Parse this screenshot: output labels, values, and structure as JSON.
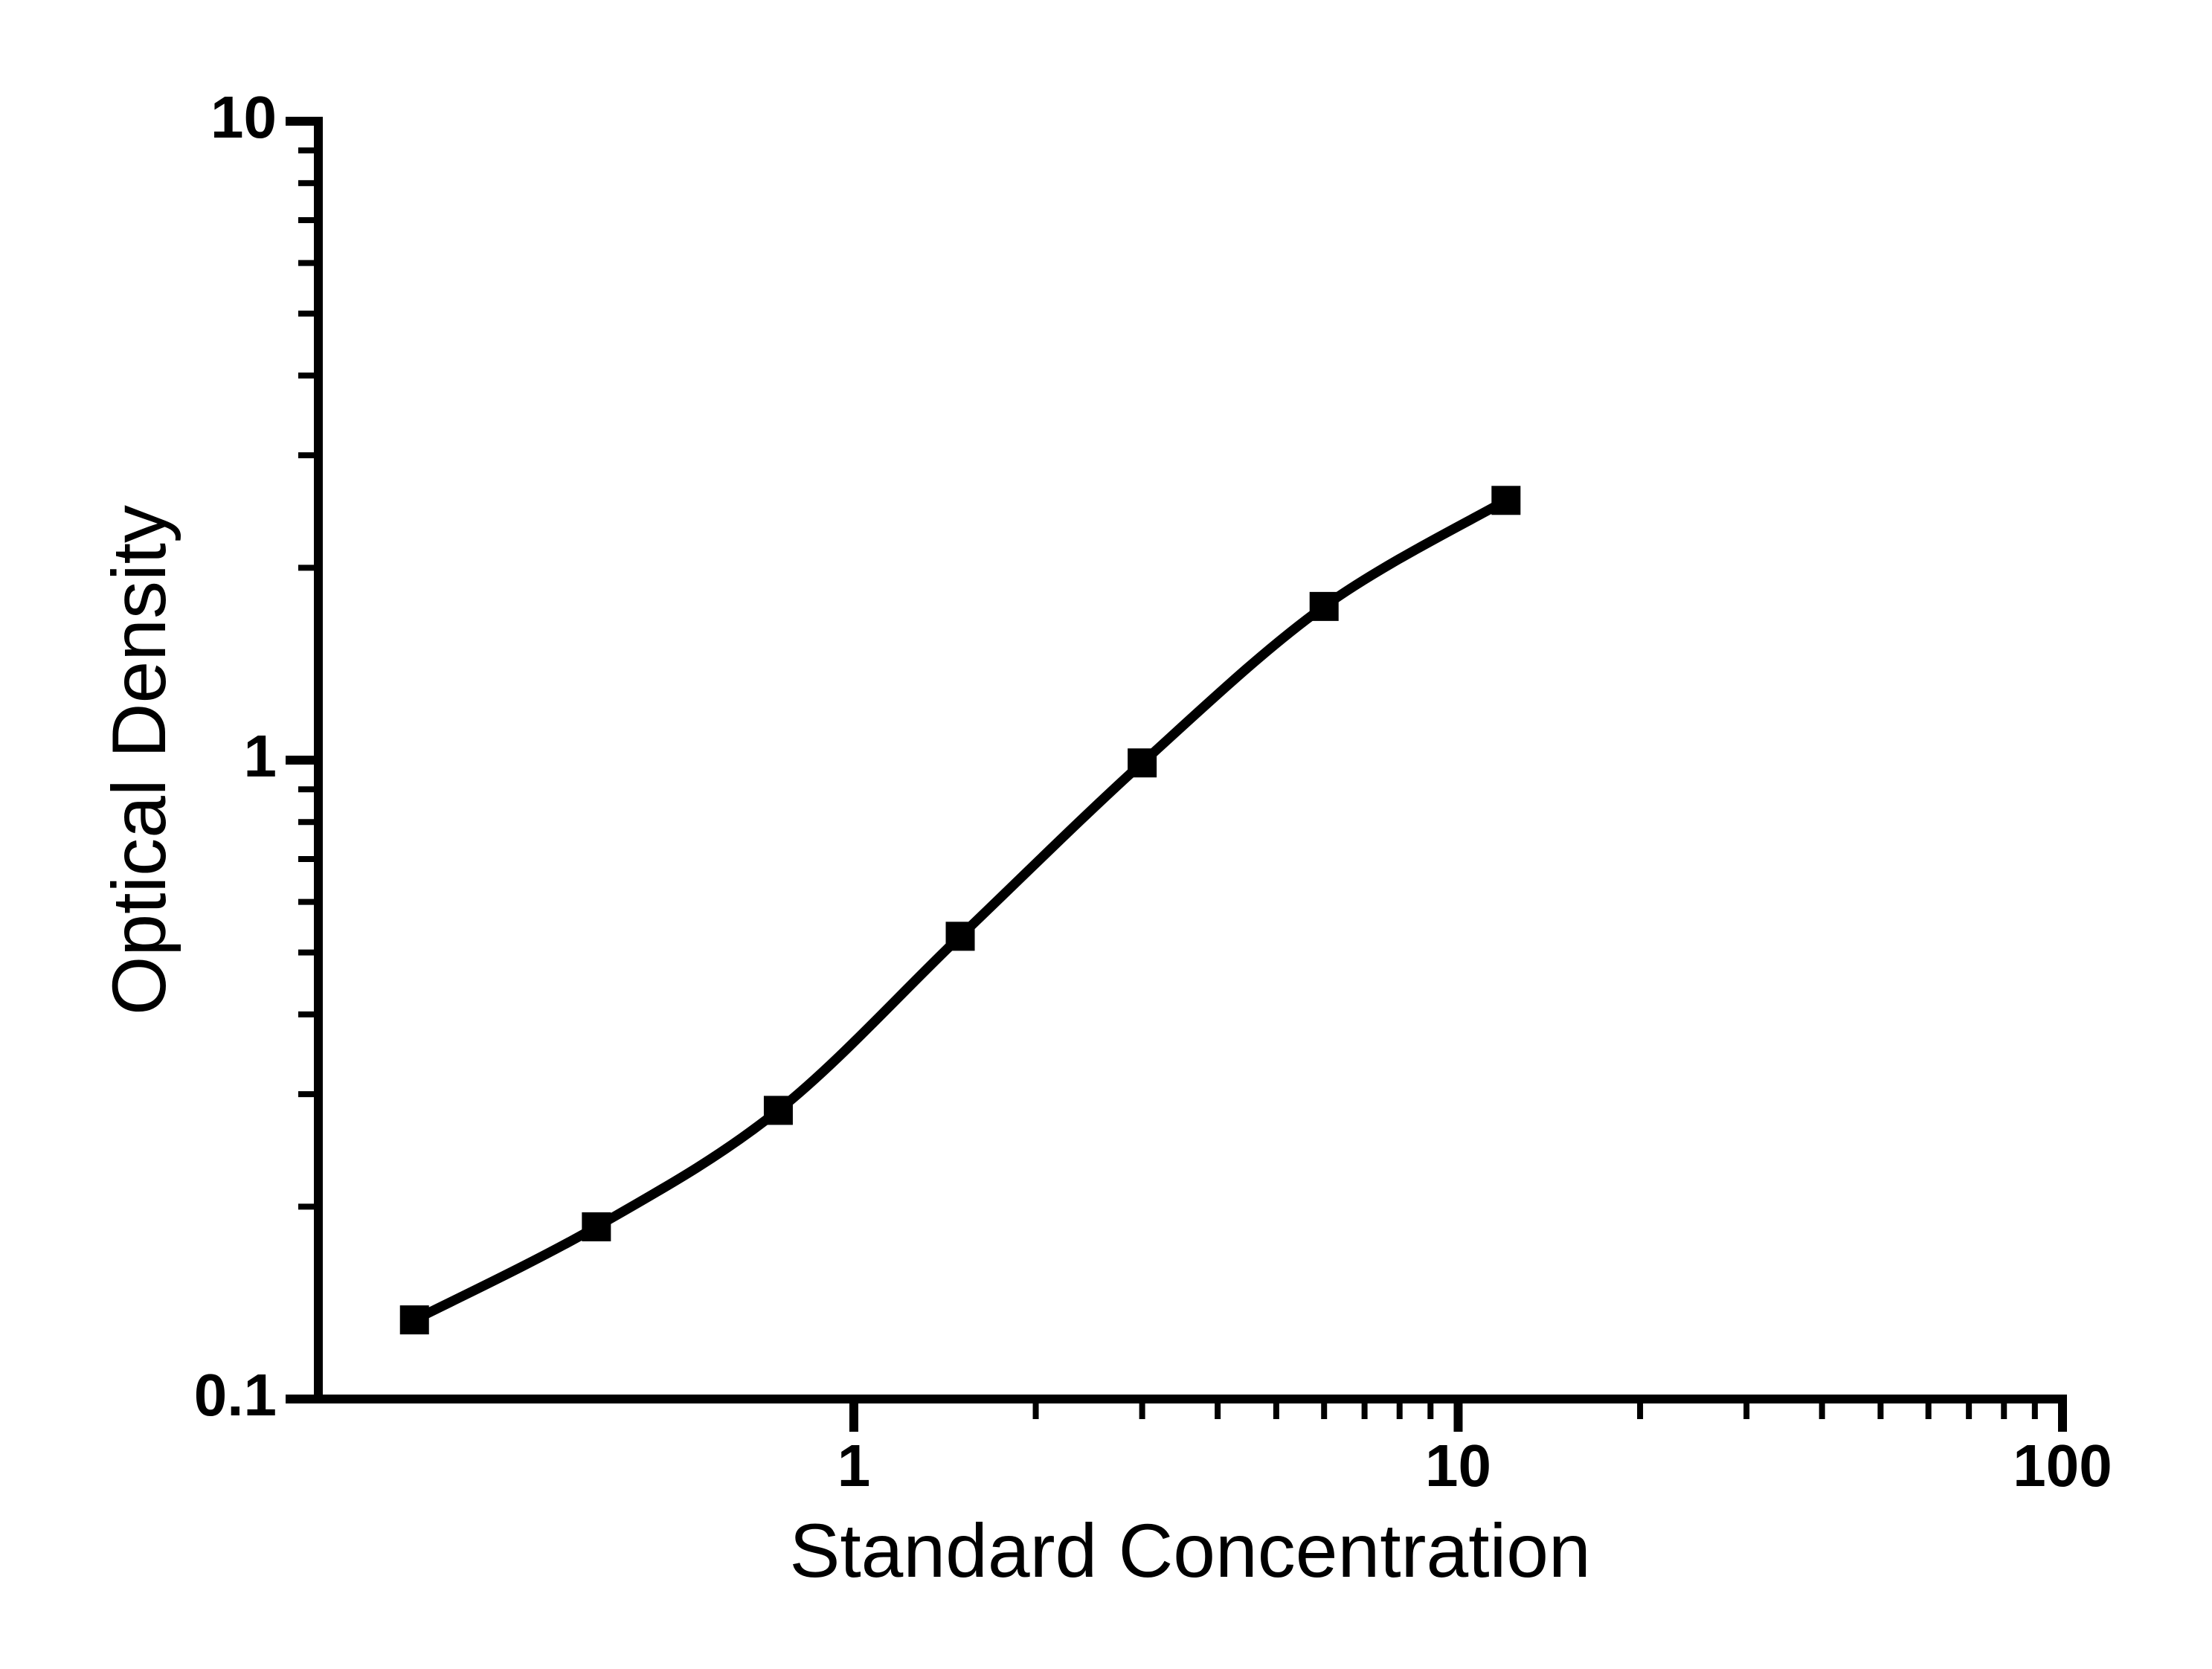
{
  "figure": {
    "background_color": "#ffffff",
    "foreground_color": "#000000"
  },
  "chart_data": {
    "type": "line",
    "subtype": "scatter-line standard curve",
    "title": "",
    "xlabel": "Standard Concentration",
    "ylabel": "Optical Density",
    "x_scale": "log",
    "y_scale": "log",
    "xlim": [
      0.13,
      100
    ],
    "ylim": [
      0.1,
      10
    ],
    "grid": "off",
    "legend": "none",
    "x_major_ticks": {
      "values": [
        1,
        10,
        100
      ],
      "labels": [
        "1",
        "10",
        "100"
      ]
    },
    "x_minor_ticks": [
      2,
      3,
      4,
      5,
      6,
      7,
      8,
      9,
      20,
      30,
      40,
      50,
      60,
      70,
      80,
      90
    ],
    "y_major_ticks": {
      "values": [
        0.1,
        1,
        10
      ],
      "labels": [
        "0.1",
        "1",
        "10"
      ]
    },
    "y_minor_ticks": [
      0.2,
      0.3,
      0.4,
      0.5,
      0.6,
      0.7,
      0.8,
      0.9,
      2,
      3,
      4,
      5,
      6,
      7,
      8,
      9
    ],
    "series": [
      {
        "name": "standard curve",
        "marker": "filled-square",
        "color": "#000000",
        "x": [
          0.1875,
          0.375,
          0.75,
          1.5,
          3,
          6,
          12
        ],
        "y": [
          0.133,
          0.186,
          0.283,
          0.53,
          0.99,
          1.74,
          2.55
        ]
      }
    ]
  }
}
